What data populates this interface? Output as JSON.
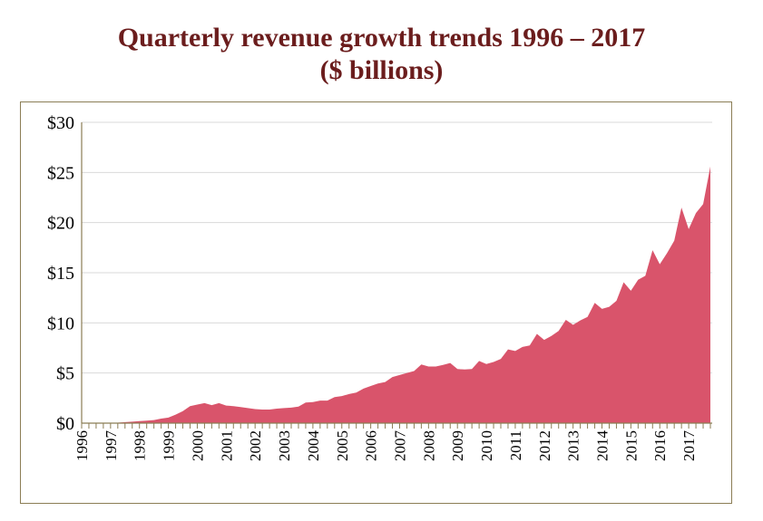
{
  "chart_data": {
    "type": "area",
    "title_line1": "Quarterly revenue growth trends 1996 – 2017",
    "title_line2": "($ billions)",
    "xlabel": "",
    "ylabel": "",
    "ylim": [
      0,
      30
    ],
    "yticks": [
      "$0",
      "$5",
      "$10",
      "$15",
      "$20",
      "$25",
      "$30"
    ],
    "ytick_values": [
      0,
      5,
      10,
      15,
      20,
      25,
      30
    ],
    "xtick_labels": [
      "1996",
      "1997",
      "1998",
      "1999",
      "2000",
      "2001",
      "2002",
      "2003",
      "2004",
      "2005",
      "2006",
      "2007",
      "2008",
      "2009",
      "2010",
      "2011",
      "2012",
      "2013",
      "2014",
      "2015",
      "2016",
      "2017"
    ],
    "x_unit": "quarter",
    "grid": true,
    "fill_color": "#d9546b",
    "title_color": "#6b1d1d",
    "series": [
      {
        "values": [
          0,
          0,
          0,
          0,
          0.02,
          0.05,
          0.1,
          0.15,
          0.2,
          0.25,
          0.3,
          0.45,
          0.55,
          0.85,
          1.2,
          1.7,
          1.85,
          2.0,
          1.8,
          2.0,
          1.75,
          1.7,
          1.6,
          1.5,
          1.4,
          1.35,
          1.35,
          1.45,
          1.5,
          1.55,
          1.65,
          2.05,
          2.1,
          2.25,
          2.25,
          2.6,
          2.7,
          2.9,
          3.05,
          3.45,
          3.7,
          3.95,
          4.1,
          4.6,
          4.8,
          5.0,
          5.2,
          5.85,
          5.65,
          5.65,
          5.8,
          6.0,
          5.4,
          5.35,
          5.4,
          6.2,
          5.9,
          6.1,
          6.4,
          7.35,
          7.2,
          7.6,
          7.75,
          8.9,
          8.3,
          8.7,
          9.2,
          10.3,
          9.8,
          10.25,
          10.6,
          12.0,
          11.4,
          11.6,
          12.2,
          14.05,
          13.2,
          14.3,
          14.7,
          17.25,
          15.85,
          16.95,
          18.2,
          21.5,
          19.35,
          20.95,
          21.85,
          25.6
        ]
      }
    ]
  }
}
